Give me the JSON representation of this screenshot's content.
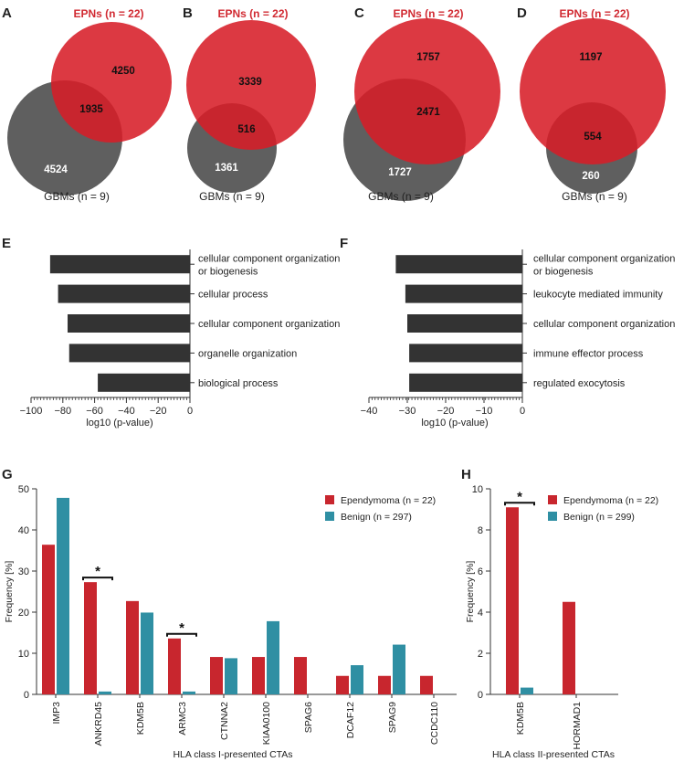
{
  "colors": {
    "epn": "#d12a32",
    "epn_fill": "rgba(215,30,40,0.88)",
    "gbm_fill": "rgba(60,60,60,0.82)",
    "bar_dark": "#333333",
    "ependymoma": "#c8262e",
    "benign": "#2f8fa3",
    "axis": "#333333"
  },
  "chart_data": [
    {
      "panel": "A",
      "type": "venn",
      "top_label": "EPNs (n = 22)",
      "bottom_label": "GBMs (n = 9)",
      "epn_only": 4250,
      "overlap": 1935,
      "gbm_only": 4524
    },
    {
      "panel": "B",
      "type": "venn",
      "top_label": "EPNs (n = 22)",
      "bottom_label": "GBMs (n = 9)",
      "epn_only": 3339,
      "overlap": 516,
      "gbm_only": 1361
    },
    {
      "panel": "C",
      "type": "venn",
      "top_label": "EPNs (n = 22)",
      "bottom_label": "GBMs (n = 9)",
      "epn_only": 1757,
      "overlap": 2471,
      "gbm_only": 1727
    },
    {
      "panel": "D",
      "type": "venn",
      "top_label": "EPNs (n = 22)",
      "bottom_label": "GBMs (n = 9)",
      "epn_only": 1197,
      "overlap": 554,
      "gbm_only": 260
    },
    {
      "panel": "E",
      "type": "bar",
      "orientation": "horizontal",
      "xlabel": "log10 (p-value)",
      "xlim": [
        -100,
        0
      ],
      "xticks": [
        -100,
        -80,
        -60,
        -40,
        -20,
        0
      ],
      "categories": [
        [
          "cellular component organization",
          "or biogenesis"
        ],
        [
          "cellular process"
        ],
        [
          "cellular component organization"
        ],
        [
          "organelle organization"
        ],
        [
          "biological process"
        ]
      ],
      "values": [
        -88,
        -83,
        -77,
        -76,
        -58
      ]
    },
    {
      "panel": "F",
      "type": "bar",
      "orientation": "horizontal",
      "xlabel": "log10 (p-value)",
      "xlim": [
        -40,
        0
      ],
      "xticks": [
        -40,
        -30,
        -20,
        -10,
        0
      ],
      "categories": [
        [
          "cellular component organization",
          "or biogenesis"
        ],
        [
          "leukocyte mediated immunity"
        ],
        [
          "cellular component organization"
        ],
        [
          "immune effector process"
        ],
        [
          "regulated exocytosis"
        ]
      ],
      "values": [
        -33,
        -30.5,
        -30,
        -29.5,
        -29.5
      ]
    },
    {
      "panel": "G",
      "type": "bar",
      "xlabel": "HLA class I-presented CTAs",
      "ylabel": "Frequency [%]",
      "ylim": [
        0,
        50
      ],
      "yticks": [
        0,
        10,
        20,
        30,
        40,
        50
      ],
      "categories": [
        "IMP3",
        "ANKRD45",
        "KDM5B",
        "ARMC3",
        "CTNNA2",
        "KIAA0100",
        "SPAG6",
        "DCAF12",
        "SPAG9",
        "CCDC110"
      ],
      "series": [
        {
          "name": "Ependymoma (n = 22)",
          "values": [
            36.4,
            27.3,
            22.7,
            13.6,
            9.1,
            9.1,
            9.1,
            4.5,
            4.5,
            4.5
          ]
        },
        {
          "name": "Benign (n = 297)",
          "values": [
            47.8,
            0.7,
            19.9,
            0.7,
            8.8,
            17.8,
            0,
            7.1,
            12.1,
            0
          ]
        }
      ],
      "significance": [
        {
          "category": "ANKRD45",
          "label": "*"
        },
        {
          "category": "ARMC3",
          "label": "*"
        }
      ]
    },
    {
      "panel": "H",
      "type": "bar",
      "xlabel": "HLA class II-presented CTAs",
      "ylabel": "Frequency [%]",
      "ylim": [
        0,
        10
      ],
      "yticks": [
        0,
        2,
        4,
        6,
        8,
        10
      ],
      "categories": [
        "KDM5B",
        "HORMAD1"
      ],
      "series": [
        {
          "name": "Ependymoma (n = 22)",
          "values": [
            9.1,
            4.5
          ]
        },
        {
          "name": "Benign (n = 299)",
          "values": [
            0.33,
            0
          ]
        }
      ],
      "significance": [
        {
          "category": "KDM5B",
          "label": "*"
        }
      ]
    }
  ]
}
